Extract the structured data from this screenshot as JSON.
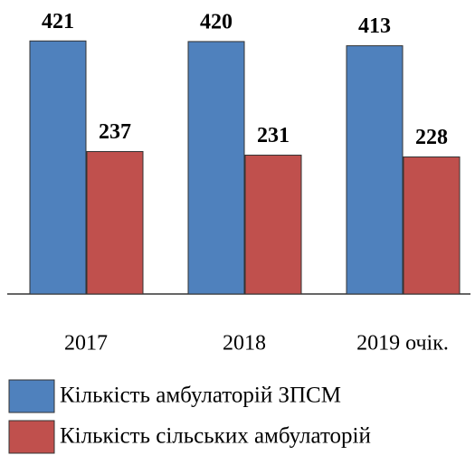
{
  "chart_data": {
    "type": "bar",
    "categories": [
      "2017",
      "2018",
      "2019 очік."
    ],
    "series": [
      {
        "name": "Кількість амбулаторій ЗПСМ",
        "color": "#4f81bd",
        "values": [
          421,
          420,
          413
        ]
      },
      {
        "name": "Кількість сільських амбулаторій",
        "color": "#c0504d",
        "values": [
          237,
          231,
          228
        ]
      }
    ],
    "ylim": [
      0,
      450
    ]
  }
}
